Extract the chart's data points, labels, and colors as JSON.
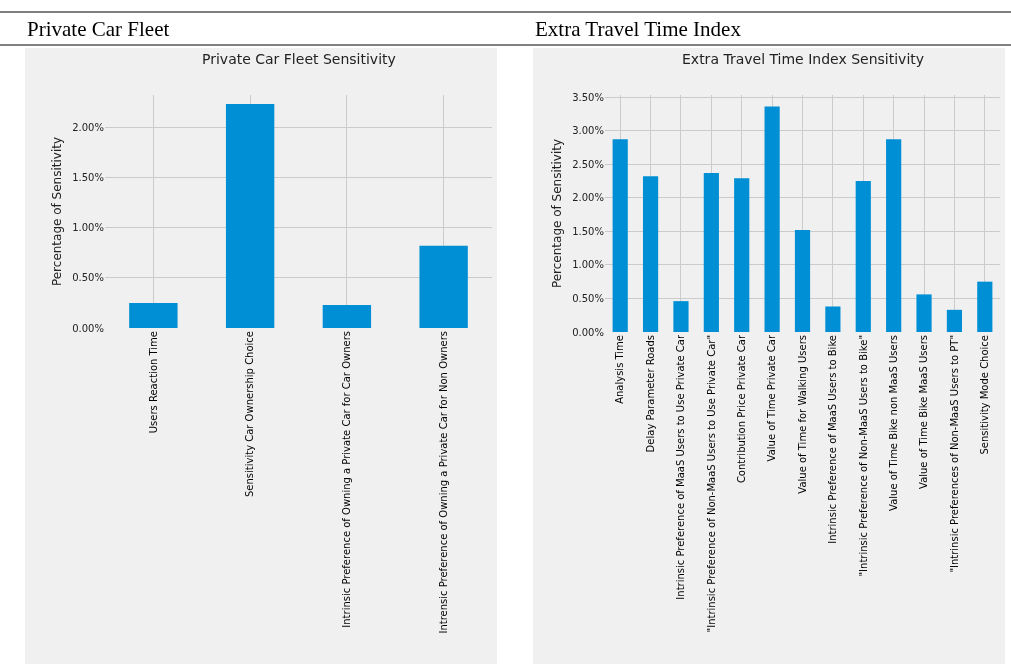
{
  "chart_data": [
    {
      "type": "bar",
      "title": "Private Car Fleet Sensitivity",
      "annotations": [
        "Private Car Fleet"
      ],
      "ylabel": "Percentage of Sensitivity",
      "color": "#008fd5",
      "grid": true,
      "categories": [
        "Users Reaction Time",
        "Sensitivity Car Ownership Choice",
        "Intrinsic Preference of Owning a Private Car for Car Owners",
        "Intrensic Preference of Owning a Private Car for Non Owners"
      ],
      "values": [
        0.25,
        2.23,
        0.23,
        0.82
      ],
      "ylim": [
        0,
        2.32
      ],
      "yticks": [
        {
          "value": 0,
          "label": "0.00%"
        },
        {
          "value": 0.5,
          "label": "0.50%"
        },
        {
          "value": 1.0,
          "label": "1.00%"
        },
        {
          "value": 1.5,
          "label": "1.50%"
        },
        {
          "value": 2.0,
          "label": "2.00%"
        }
      ]
    },
    {
      "type": "bar",
      "title": "Extra Travel Time Index Sensitivity",
      "annotations": [
        "Extra Travel Time Index"
      ],
      "ylabel": "Percentage of Sensitivity",
      "color": "#008fd5",
      "grid": true,
      "categories": [
        "Analysis Time",
        "Delay Parameter Roads",
        "Intrinsic Preference of MaaS Users to Use Private Car",
        "\"Intrinsic Preference of Non-MaaS Users to Use Private Car\"",
        "Contribution Price Private Car",
        "Value of Time Private Car",
        "Value of Time for Walking Users",
        "Intrinsic Preference of MaaS Users to Bike",
        "\"Intrinsic Preference of Non-MaaS Users to Bike\"",
        "Value of Time Bike non MaaS Users",
        "Value of Time Bike MaaS Users",
        "\"Intrinsic Preferences of Non-MaaS Users to PT\"",
        "Sensitivity Mode Choice"
      ],
      "values": [
        2.87,
        2.32,
        0.46,
        2.37,
        2.29,
        3.36,
        1.52,
        0.38,
        2.25,
        2.87,
        0.56,
        0.33,
        0.75
      ],
      "ylim": [
        0,
        3.53
      ],
      "yticks": [
        {
          "value": 0,
          "label": "0.00%"
        },
        {
          "value": 0.5,
          "label": "0.50%"
        },
        {
          "value": 1.0,
          "label": "1.00%"
        },
        {
          "value": 1.5,
          "label": "1.50%"
        },
        {
          "value": 2.0,
          "label": "2.00%"
        },
        {
          "value": 2.5,
          "label": "2.50%"
        },
        {
          "value": 3.0,
          "label": "3.00%"
        },
        {
          "value": 3.5,
          "label": "3.50%"
        }
      ]
    }
  ]
}
